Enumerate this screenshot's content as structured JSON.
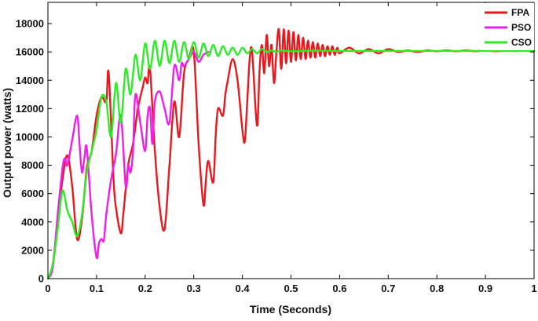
{
  "chart_data": {
    "type": "line",
    "title": "",
    "xlabel": "Time (Seconds)",
    "ylabel": "Output power (watts)",
    "xlim": [
      0,
      1
    ],
    "ylim": [
      0,
      19500
    ],
    "x_ticks": [
      0,
      0.1,
      0.2,
      0.3,
      0.4,
      0.5,
      0.6,
      0.7,
      0.8,
      0.9,
      1
    ],
    "x_tick_labels": [
      "0",
      "0.1",
      "0.2",
      "0.3",
      "0.4",
      "0.5",
      "0.6",
      "0.7",
      "0.8",
      "0.9",
      "1"
    ],
    "y_ticks": [
      0,
      2000,
      4000,
      6000,
      8000,
      10000,
      12000,
      14000,
      16000,
      18000
    ],
    "y_tick_labels": [
      "0",
      "2000",
      "4000",
      "6000",
      "8000",
      "10000",
      "12000",
      "14000",
      "16000",
      "18000"
    ],
    "grid": false,
    "legend_position": "top-right",
    "series": [
      {
        "name": "FPA",
        "color": "#e8191e",
        "x": [
          0,
          0.01,
          0.02,
          0.03,
          0.04,
          0.05,
          0.06,
          0.07,
          0.08,
          0.09,
          0.1,
          0.11,
          0.12,
          0.125,
          0.135,
          0.14,
          0.15,
          0.155,
          0.165,
          0.175,
          0.185,
          0.195,
          0.2,
          0.205,
          0.21,
          0.22,
          0.23,
          0.24,
          0.25,
          0.26,
          0.27,
          0.28,
          0.29,
          0.3,
          0.31,
          0.32,
          0.325,
          0.33,
          0.34,
          0.345,
          0.35,
          0.36,
          0.365,
          0.37,
          0.38,
          0.39,
          0.4,
          0.405,
          0.41,
          0.415,
          0.42,
          0.43,
          0.435,
          0.44,
          0.445,
          0.45,
          0.455,
          0.46,
          0.465,
          0.47,
          0.475,
          0.48,
          0.485,
          0.49,
          0.495,
          0.5,
          0.505,
          0.51,
          0.515,
          0.52,
          0.525,
          0.53,
          0.535,
          0.54,
          0.545,
          0.55,
          0.555,
          0.56,
          0.565,
          0.57,
          0.575,
          0.58,
          0.585,
          0.59,
          0.595,
          0.6,
          0.62,
          0.64,
          0.66,
          0.68,
          0.7,
          0.72,
          0.74,
          0.76,
          0.78,
          0.8,
          0.82,
          0.84,
          0.86,
          0.88,
          0.9,
          0.92,
          0.94,
          0.96,
          0.98,
          1.0
        ],
        "y": [
          0,
          1000,
          4000,
          7000,
          8700,
          6500,
          2800,
          4200,
          7800,
          9000,
          11500,
          12800,
          12500,
          14500,
          7000,
          5000,
          3200,
          4500,
          8000,
          9500,
          12000,
          13500,
          14200,
          13800,
          14800,
          9000,
          5000,
          3500,
          8000,
          12500,
          10000,
          14500,
          15500,
          16000,
          9500,
          5200,
          7000,
          8300,
          6800,
          10000,
          12000,
          11500,
          13000,
          14000,
          15500,
          14000,
          10500,
          9700,
          12500,
          15500,
          16000,
          10800,
          14500,
          16500,
          14500,
          17200,
          15000,
          16500,
          13800,
          16000,
          17600,
          14800,
          17600,
          15200,
          17500,
          15300,
          17400,
          15400,
          17200,
          15500,
          17000,
          15500,
          16800,
          15600,
          16700,
          15600,
          16600,
          15700,
          16500,
          15700,
          16400,
          15800,
          16400,
          15800,
          16300,
          15900,
          16300,
          15900,
          16200,
          15900,
          16200,
          16000,
          16100,
          16000,
          16100,
          16050,
          16100,
          16050,
          16100,
          16050,
          16100,
          16050,
          16080,
          16070,
          16080,
          16070
        ]
      },
      {
        "name": "PSO",
        "color": "#ee1fe8",
        "x": [
          0,
          0.01,
          0.02,
          0.03,
          0.035,
          0.04,
          0.05,
          0.06,
          0.065,
          0.07,
          0.075,
          0.08,
          0.09,
          0.1,
          0.105,
          0.11,
          0.115,
          0.12,
          0.13,
          0.14,
          0.15,
          0.16,
          0.165,
          0.17,
          0.175,
          0.18,
          0.19,
          0.2,
          0.205,
          0.21,
          0.215,
          0.22,
          0.23,
          0.24,
          0.25,
          0.26,
          0.27,
          0.275,
          0.28,
          0.29,
          0.3,
          0.31,
          0.32,
          0.33
        ],
        "y": [
          0,
          800,
          4500,
          7800,
          8500,
          8000,
          9800,
          11500,
          9500,
          7500,
          8500,
          9200,
          4500,
          1500,
          2500,
          2800,
          2700,
          4500,
          7000,
          8800,
          11500,
          6500,
          8000,
          7500,
          9000,
          13000,
          11000,
          9000,
          11500,
          12000,
          9500,
          12500,
          13200,
          12000,
          11000,
          15000,
          14000,
          15200,
          15000,
          15500,
          16000,
          15300,
          15800,
          16000
        ]
      },
      {
        "name": "CSO",
        "color": "#2bec25",
        "x": [
          0,
          0.01,
          0.02,
          0.03,
          0.04,
          0.05,
          0.06,
          0.07,
          0.08,
          0.09,
          0.1,
          0.11,
          0.12,
          0.13,
          0.14,
          0.15,
          0.16,
          0.17,
          0.18,
          0.19,
          0.2,
          0.21,
          0.22,
          0.23,
          0.24,
          0.25,
          0.26,
          0.27,
          0.28,
          0.29,
          0.3,
          0.31,
          0.32,
          0.33,
          0.34,
          0.35,
          0.36,
          0.37,
          0.38,
          0.39,
          0.4,
          0.41,
          0.42,
          0.43,
          0.44,
          0.45,
          0.46,
          0.47,
          0.48,
          0.5,
          0.55,
          0.6,
          0.7,
          0.8,
          0.9,
          1.0
        ],
        "y": [
          0,
          1000,
          3500,
          6200,
          4800,
          4000,
          3000,
          4500,
          7500,
          9000,
          10500,
          12800,
          12500,
          10000,
          13800,
          11000,
          14800,
          13000,
          15800,
          14000,
          16600,
          14800,
          16800,
          15000,
          16800,
          15200,
          16800,
          15300,
          16700,
          15500,
          16700,
          15600,
          16600,
          15700,
          16500,
          15700,
          16400,
          15800,
          16300,
          15800,
          16300,
          15900,
          16200,
          15900,
          16200,
          16000,
          16100,
          16000,
          16100,
          16050,
          16080,
          16070,
          16070,
          16070,
          16070,
          16070
        ]
      }
    ]
  }
}
